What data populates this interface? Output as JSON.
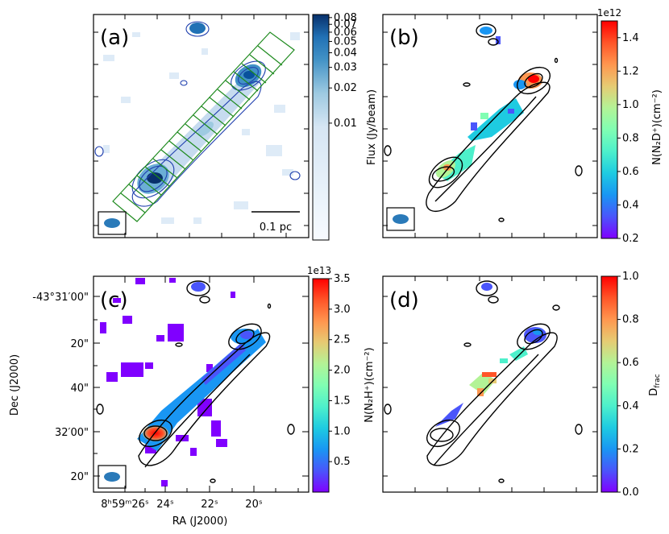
{
  "chart_data": [
    {
      "id": "a",
      "type": "heatmap",
      "panel_label": "(a)",
      "scale_bar_label": "0.1 pc",
      "colorbar": {
        "label": "Flux (Jy/beam)",
        "scale": "log",
        "ticks": [
          "0.08",
          "0.07",
          "0.06",
          "0.05",
          "0.04",
          "0.03",
          "0.02",
          "0.01"
        ],
        "tick_values": [
          0.08,
          0.07,
          0.06,
          0.05,
          0.04,
          0.03,
          0.02,
          0.01
        ],
        "range": [
          0.001,
          0.085
        ],
        "colormap": "Blues"
      },
      "overlay": "green rectangular cuts along filament",
      "beam": "blue ellipse"
    },
    {
      "id": "b",
      "type": "heatmap",
      "panel_label": "(b)",
      "colorbar": {
        "label": "N(N₂D⁺)(cm⁻²)",
        "offset_text": "1e12",
        "ticks": [
          "1.4",
          "1.2",
          "1.0",
          "0.8",
          "0.6",
          "0.4",
          "0.2"
        ],
        "tick_values": [
          1.4,
          1.2,
          1.0,
          0.8,
          0.6,
          0.4,
          0.2
        ],
        "range": [
          0.2,
          1.5
        ],
        "colormap": "rainbow"
      },
      "beam": "blue ellipse"
    },
    {
      "id": "c",
      "type": "heatmap",
      "panel_label": "(c)",
      "colorbar": {
        "label": "N(N₂H⁺)(cm⁻²)",
        "offset_text": "1e13",
        "ticks": [
          "3.5",
          "3.0",
          "2.5",
          "2.0",
          "1.5",
          "1.0",
          "0.5"
        ],
        "tick_values": [
          3.5,
          3.0,
          2.5,
          2.0,
          1.5,
          1.0,
          0.5
        ],
        "range": [
          0.0,
          3.5
        ],
        "colormap": "rainbow"
      },
      "xlabel": "RA (J2000)",
      "ylabel": "Dec (J2000)",
      "x_ticks": [
        "8ʰ59ᵐ26ˢ",
        "24ˢ",
        "22ˢ",
        "20ˢ"
      ],
      "y_ticks": [
        "-43°31′00\"",
        "20\"",
        "40\"",
        "32′00\"",
        "20\""
      ],
      "beam": "blue ellipse"
    },
    {
      "id": "d",
      "type": "heatmap",
      "panel_label": "(d)",
      "colorbar": {
        "label": "D_frac",
        "label_main": "D",
        "label_sub": "frac",
        "ticks": [
          "1.0",
          "0.8",
          "0.6",
          "0.4",
          "0.2",
          "0.0"
        ],
        "tick_values": [
          1.0,
          0.8,
          0.6,
          0.4,
          0.2,
          0.0
        ],
        "range": [
          0.0,
          1.0
        ],
        "colormap": "rainbow"
      }
    }
  ],
  "colors": {
    "blues": [
      "#f7fbff",
      "#deebf7",
      "#c6dbef",
      "#9ecae1",
      "#6baed6",
      "#4292c6",
      "#2171b5",
      "#08519c",
      "#08306b"
    ],
    "rainbow": [
      "#8000ff",
      "#4a55fb",
      "#1996f3",
      "#1ecbe1",
      "#4df0cb",
      "#80feb3",
      "#b3f396",
      "#e6cb73",
      "#ff964f",
      "#ff5528",
      "#ff0000"
    ],
    "contour_a": "#1f3fae",
    "contour": "#000000",
    "cuts": "#1e8a1e",
    "beam": "#2a7ab9"
  }
}
